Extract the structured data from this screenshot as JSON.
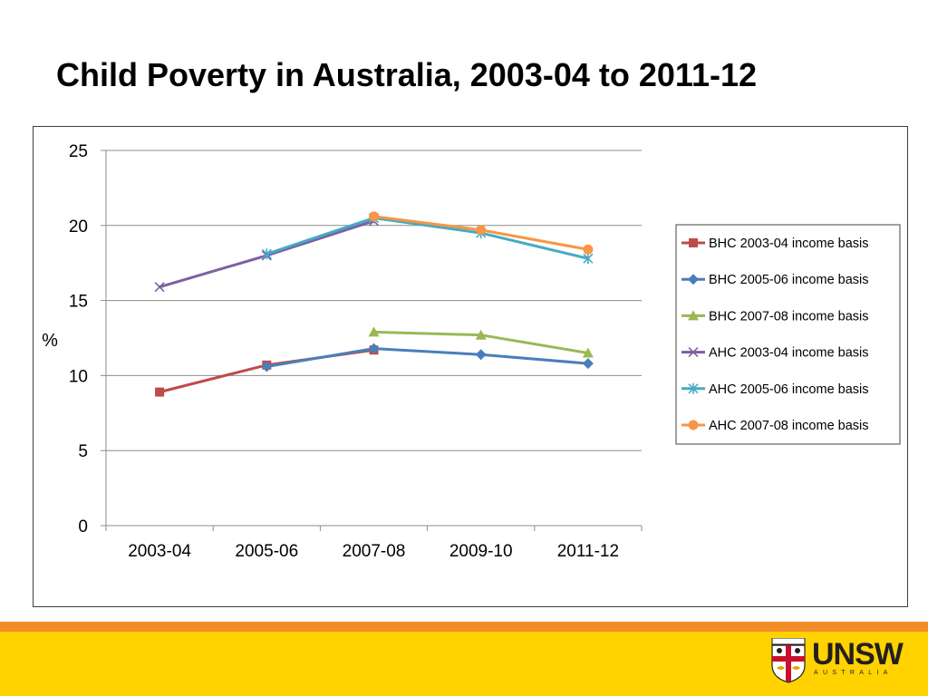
{
  "slide": {
    "title": "Child Poverty in Australia, 2003-04 to 2011-12"
  },
  "logo": {
    "word": "UNSW",
    "sub": "AUSTRALIA",
    "icon": "unsw-crest-icon"
  },
  "colors": {
    "footer_band": "#ffd200",
    "footer_stripe": "#f28c28"
  },
  "chart_data": {
    "type": "line",
    "title": "",
    "xlabel": "",
    "ylabel": "%",
    "categories": [
      "2003-04",
      "2005-06",
      "2007-08",
      "2009-10",
      "2011-12"
    ],
    "ylim": [
      0,
      25
    ],
    "yticks": [
      0,
      5,
      10,
      15,
      20,
      25
    ],
    "grid": true,
    "legend": "right",
    "series": [
      {
        "name": "BHC 2003-04 income basis",
        "color": "#be4b48",
        "marker": "square",
        "values": [
          8.9,
          10.7,
          11.7,
          null,
          null
        ]
      },
      {
        "name": "BHC 2005-06 income basis",
        "color": "#4a7ebb",
        "marker": "diamond",
        "values": [
          null,
          10.6,
          11.8,
          11.4,
          10.8
        ]
      },
      {
        "name": "BHC 2007-08 income basis",
        "color": "#98b954",
        "marker": "triangle",
        "values": [
          null,
          null,
          12.9,
          12.7,
          11.5
        ]
      },
      {
        "name": "AHC 2003-04 income basis",
        "color": "#7d60a0",
        "marker": "x",
        "values": [
          15.9,
          18.0,
          20.3,
          null,
          null
        ]
      },
      {
        "name": "AHC 2005-06 income basis",
        "color": "#46aac5",
        "marker": "star",
        "values": [
          null,
          18.1,
          20.5,
          19.5,
          17.8
        ]
      },
      {
        "name": "AHC 2007-08 income basis",
        "color": "#f79646",
        "marker": "circle",
        "values": [
          null,
          null,
          20.6,
          19.7,
          18.4
        ]
      }
    ]
  }
}
